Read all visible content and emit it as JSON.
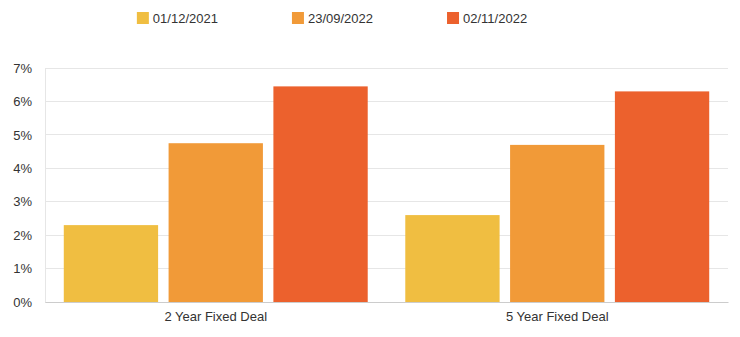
{
  "chart_data": {
    "type": "bar",
    "categories": [
      "2 Year Fixed Deal",
      "5 Year Fixed Deal"
    ],
    "series": [
      {
        "name": "01/12/2021",
        "color": "#F0BE41",
        "values": [
          2.3,
          2.6
        ]
      },
      {
        "name": "23/09/2022",
        "color": "#F19A38",
        "values": [
          4.75,
          4.7
        ]
      },
      {
        "name": "02/11/2022",
        "color": "#EC612D",
        "values": [
          6.45,
          6.3
        ]
      }
    ],
    "ylim": [
      0,
      7
    ],
    "yticks": [
      {
        "value": 0,
        "label": "0%"
      },
      {
        "value": 1,
        "label": "1%"
      },
      {
        "value": 2,
        "label": "2%"
      },
      {
        "value": 3,
        "label": "3%"
      },
      {
        "value": 4,
        "label": "4%"
      },
      {
        "value": 5,
        "label": "5%"
      },
      {
        "value": 6,
        "label": "6%"
      },
      {
        "value": 7,
        "label": "7%"
      }
    ],
    "grid": true,
    "legend": "top"
  }
}
